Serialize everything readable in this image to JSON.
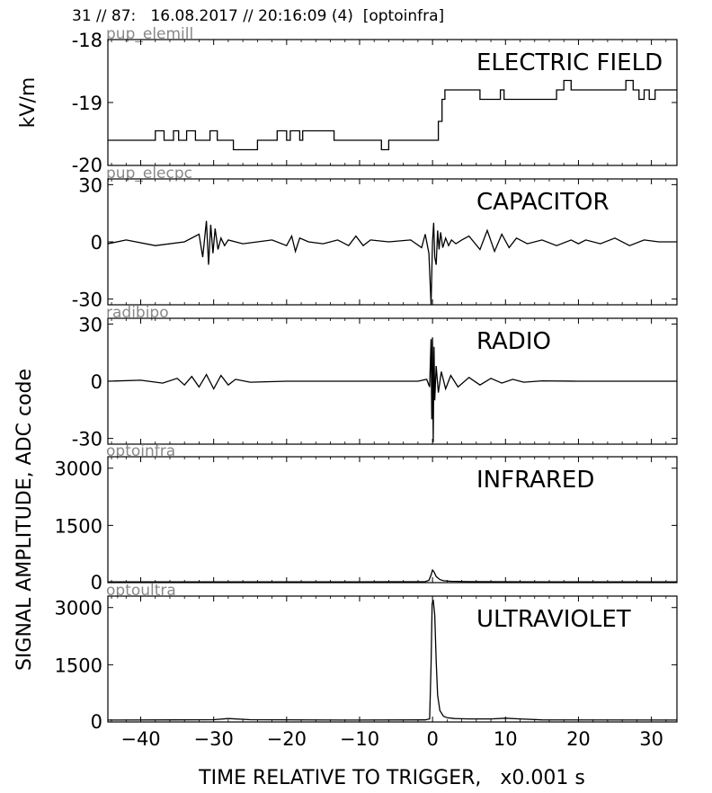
{
  "header": {
    "title": "31 // 87:   16.08.2017 // 20:16:09 (4)  [optoinfra]"
  },
  "chart_data": {
    "type": "line",
    "xlabel": "TIME RELATIVE TO TRIGGER,   x0.001 s",
    "shared_ylabel": "SIGNAL AMPLITUDE,  ADC code",
    "xlim": [
      -44.5,
      33.5
    ],
    "xticks": [
      -40,
      -30,
      -20,
      -10,
      0,
      10,
      20,
      30
    ],
    "xtick_labels": [
      "−40",
      "−30",
      "−20",
      "−10",
      "0",
      "10",
      "20",
      "30"
    ],
    "panels": [
      {
        "channel": "pup_elemill",
        "title": "ELECTRIC FIELD",
        "ylabel": "kV/m",
        "ylim": [
          -20,
          -18
        ],
        "yticks": [
          -18,
          -19,
          -20
        ],
        "ytick_labels": [
          "-18",
          "-19",
          "-20"
        ],
        "step": true,
        "x": [
          -44.5,
          -42,
          -39.8,
          -38,
          -37.5,
          -36.8,
          -35.5,
          -34.8,
          -33.7,
          -32.5,
          -31.2,
          -30.5,
          -29.5,
          -28.8,
          -27.7,
          -27.3,
          -24,
          -21.7,
          -21.3,
          -20,
          -19.5,
          -18.2,
          -17.8,
          -16.5,
          -16,
          -13.5,
          -13,
          -8,
          -7,
          -6,
          -5.5,
          -3,
          0.5,
          0.8,
          1.3,
          1.7,
          6,
          6.5,
          9.3,
          9.8,
          15,
          17,
          18,
          19,
          20,
          25.5,
          26.5,
          27.5,
          28.3,
          29,
          29.7,
          30.5,
          31.5,
          33.5
        ],
        "y": [
          -19.6,
          -19.6,
          -19.6,
          -19.45,
          -19.45,
          -19.6,
          -19.45,
          -19.6,
          -19.45,
          -19.6,
          -19.6,
          -19.45,
          -19.6,
          -19.6,
          -19.6,
          -19.75,
          -19.6,
          -19.6,
          -19.45,
          -19.6,
          -19.45,
          -19.6,
          -19.45,
          -19.45,
          -19.45,
          -19.6,
          -19.6,
          -19.6,
          -19.75,
          -19.6,
          -19.6,
          -19.6,
          -19.6,
          -19.3,
          -18.95,
          -18.8,
          -18.8,
          -18.95,
          -18.8,
          -18.95,
          -18.95,
          -18.8,
          -18.65,
          -18.8,
          -18.8,
          -18.8,
          -18.65,
          -18.8,
          -18.95,
          -18.8,
          -18.95,
          -18.8,
          -18.8,
          -18.8
        ]
      },
      {
        "channel": "pup_elecpc",
        "title": "CAPACITOR",
        "ylabel": "",
        "ylim": [
          -33,
          33
        ],
        "yticks": [
          30,
          0,
          -30
        ],
        "ytick_labels": [
          "30",
          "0",
          "-30"
        ],
        "x": [
          -44.5,
          -42,
          -38,
          -34,
          -32,
          -31.5,
          -31,
          -30.7,
          -30.4,
          -30.1,
          -29.8,
          -29.4,
          -29,
          -28.5,
          -28,
          -26,
          -22,
          -20,
          -19.3,
          -18.8,
          -18.2,
          -17,
          -15,
          -13,
          -11.5,
          -10.5,
          -9.5,
          -8.5,
          -6,
          -3,
          -1.5,
          -1,
          -0.5,
          -0.2,
          0,
          0.15,
          0.3,
          0.5,
          0.7,
          0.9,
          1.1,
          1.4,
          1.8,
          2.2,
          2.6,
          3.2,
          4,
          5,
          6.5,
          7.5,
          8.5,
          9.5,
          10.5,
          11.5,
          13,
          15,
          17,
          19,
          20,
          21,
          23,
          25,
          27,
          29,
          31,
          33.5
        ],
        "y": [
          -1,
          1,
          -2,
          0,
          4,
          -8,
          11,
          -12,
          9,
          -6,
          7,
          -4,
          2,
          -2,
          1,
          -1,
          1,
          -2,
          3,
          -5,
          2,
          0,
          -1,
          1,
          -2,
          3,
          -2,
          1,
          0,
          1,
          -3,
          4,
          -6,
          -33,
          0,
          10,
          -8,
          -12,
          6,
          -4,
          5,
          -3,
          2,
          -2,
          1,
          -1,
          1,
          3,
          -4,
          6,
          -5,
          4,
          -3,
          2,
          -1,
          1,
          -2,
          1,
          -1,
          1,
          -1,
          2,
          -2,
          1,
          0,
          0
        ]
      },
      {
        "channel": "radibipo",
        "title": "RADIO",
        "ylabel": "",
        "ylim": [
          -33,
          33
        ],
        "yticks": [
          30,
          0,
          -30
        ],
        "ytick_labels": [
          "30",
          "0",
          "-30"
        ],
        "x": [
          -44.5,
          -40,
          -37,
          -35,
          -34,
          -33,
          -32,
          -31,
          -30,
          -29,
          -28,
          -27,
          -25,
          -20,
          -10,
          -2,
          -0.8,
          -0.4,
          -0.2,
          -0.1,
          0,
          0.1,
          0.2,
          0.3,
          0.5,
          0.8,
          1.2,
          1.8,
          2.5,
          3.5,
          5,
          6.5,
          8,
          9.5,
          11,
          12.5,
          15,
          20,
          25,
          33.5
        ],
        "y": [
          0,
          0.5,
          -1,
          1.5,
          -2,
          2.5,
          -3,
          3.5,
          -4,
          3,
          -2,
          1,
          -0.5,
          0,
          0,
          0,
          1,
          -3,
          22,
          -20,
          23,
          -32,
          18,
          -10,
          8,
          -6,
          5,
          -4,
          3,
          -3,
          2,
          -2,
          1.5,
          -1,
          1,
          -0.5,
          0.2,
          0,
          0,
          0
        ]
      },
      {
        "channel": "optoinfra",
        "title": "INFRARED",
        "ylabel": "",
        "ylim": [
          0,
          3300
        ],
        "yticks": [
          3000,
          1500,
          0
        ],
        "ytick_labels": [
          "3000",
          "1500",
          "0"
        ],
        "x": [
          -44.5,
          -30,
          -10,
          -1,
          -0.5,
          -0.2,
          0,
          0.2,
          0.5,
          1,
          1.5,
          2.5,
          5,
          15,
          33.5
        ],
        "y": [
          20,
          20,
          20,
          25,
          60,
          200,
          330,
          280,
          160,
          80,
          50,
          35,
          25,
          20,
          20
        ]
      },
      {
        "channel": "optoultra",
        "title": "ULTRAVIOLET",
        "ylabel": "",
        "ylim": [
          0,
          3300
        ],
        "yticks": [
          3000,
          1500,
          0
        ],
        "ytick_labels": [
          "3000",
          "1500",
          "0"
        ],
        "x": [
          -44.5,
          -35,
          -30,
          -28,
          -25,
          -10,
          -1,
          -0.4,
          -0.2,
          -0.05,
          0.1,
          0.3,
          0.5,
          0.7,
          1,
          1.5,
          2,
          3,
          5,
          8,
          10,
          12,
          15,
          33.5
        ],
        "y": [
          50,
          55,
          60,
          90,
          60,
          50,
          55,
          80,
          1500,
          3100,
          3200,
          2800,
          1600,
          700,
          300,
          150,
          110,
          90,
          80,
          80,
          100,
          80,
          55,
          50
        ]
      }
    ]
  }
}
